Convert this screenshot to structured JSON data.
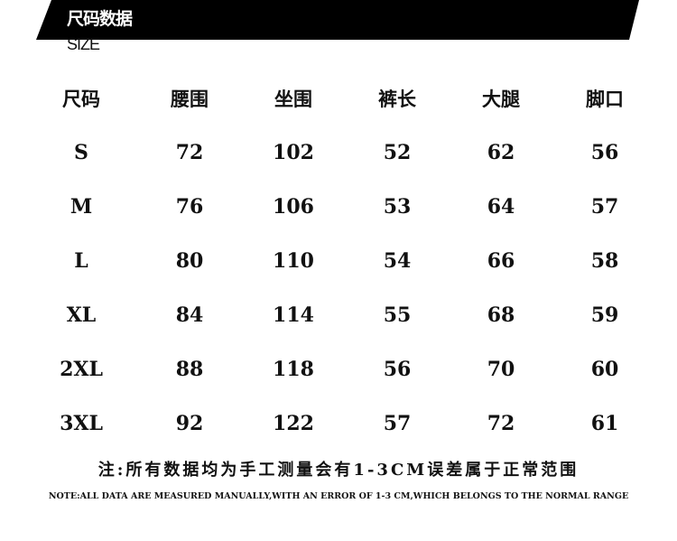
{
  "banner": {
    "title": "尺码数据",
    "subtitle": "SIZE",
    "color": "#000000"
  },
  "table": {
    "headers": [
      "尺码",
      "腰围",
      "坐围",
      "裤长",
      "大腿",
      "脚口"
    ],
    "rows": [
      [
        "S",
        "72",
        "102",
        "52",
        "62",
        "56"
      ],
      [
        "M",
        "76",
        "106",
        "53",
        "64",
        "57"
      ],
      [
        "L",
        "80",
        "110",
        "54",
        "66",
        "58"
      ],
      [
        "XL",
        "84",
        "114",
        "55",
        "68",
        "59"
      ],
      [
        "2XL",
        "88",
        "118",
        "56",
        "70",
        "60"
      ],
      [
        "3XL",
        "92",
        "122",
        "57",
        "72",
        "61"
      ]
    ]
  },
  "note": {
    "zh": "注:所有数据均为手工测量会有1-3CM误差属于正常范围",
    "en": "NOTE:ALL DATA ARE MEASURED MANUALLY,WITH AN ERROR OF 1-3 CM,WHICH BELONGS TO THE NORMAL RANGE"
  }
}
